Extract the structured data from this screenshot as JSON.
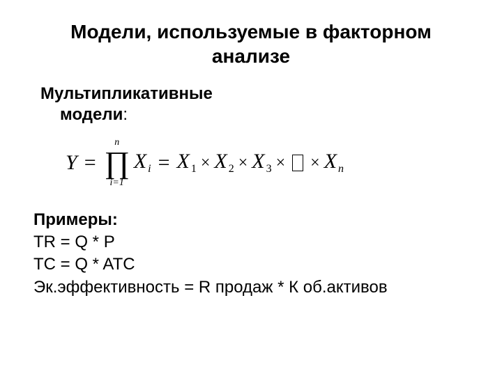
{
  "colors": {
    "background": "#ffffff",
    "text": "#000000"
  },
  "typography": {
    "title_fontsize": 28,
    "subhead_fontsize": 24,
    "body_fontsize": 24,
    "formula_fontsize": 30,
    "formula_subscript_fontsize": 16,
    "prod_limit_fontsize": 14,
    "prod_symbol_fontsize": 44,
    "title_weight": 700,
    "subhead_weight": 700
  },
  "title": "Модели, используемые в факторном анализе",
  "subhead_line1": "Мультипликативные",
  "subhead_line2": "модели",
  "colon": ":",
  "formula": {
    "Y": "Y",
    "eq": "=",
    "prod_upper": "n",
    "prod_symbol": "∏",
    "prod_lower": "i=1",
    "X": "X",
    "i": "i",
    "s1": "1",
    "s2": "2",
    "s3": "3",
    "n": "n",
    "times": "×"
  },
  "examples": {
    "hdr": "Примеры:",
    "line1": "TR = Q * P",
    "line2": "TC = Q * ATC",
    "line3": "Эк.эффективность = R продаж * К об.активов"
  }
}
